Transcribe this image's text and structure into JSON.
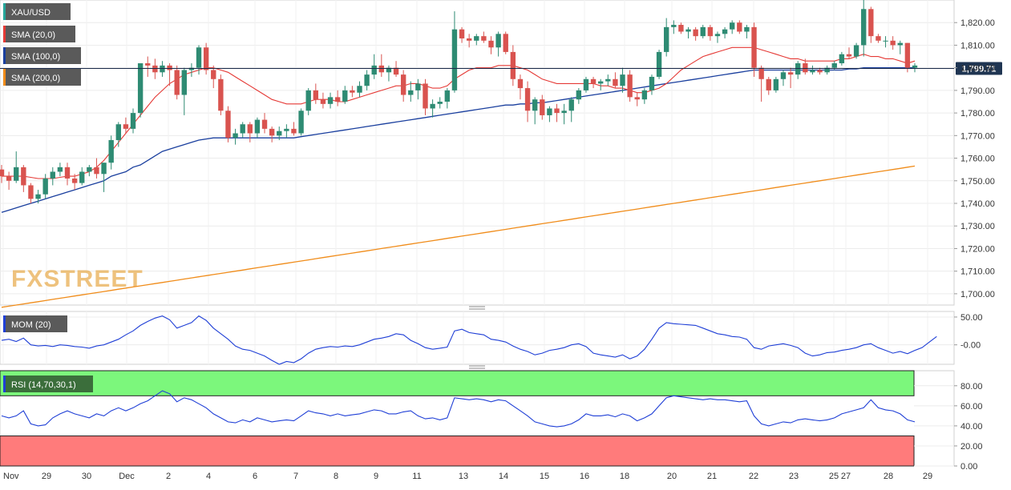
{
  "watermark": "FXSTREET",
  "chart_data": {
    "type": "candlestick",
    "symbol": "XAU/USD",
    "last_price": 1799.71,
    "last_price_label": "1,799.71",
    "price_axis": {
      "ylim": [
        1695,
        1830
      ],
      "ticks": [
        1700,
        1710,
        1720,
        1730,
        1740,
        1750,
        1760,
        1770,
        1780,
        1790,
        1800,
        1810,
        1820
      ],
      "tick_labels": [
        "1,700.00",
        "1,710.00",
        "1,720.00",
        "1,730.00",
        "1,740.00",
        "1,750.00",
        "1,760.00",
        "1,770.00",
        "1,780.00",
        "1,790.00",
        "1,800.00",
        "1,810.00",
        "1,820.00"
      ]
    },
    "x_axis": {
      "labels": [
        "Nov",
        "29",
        "30",
        "Dec",
        "2",
        "4",
        "6",
        "7",
        "8",
        "9",
        "11",
        "13",
        "14",
        "15",
        "16",
        "18",
        "20",
        "21",
        "22",
        "23",
        "25",
        "27",
        "28",
        "29"
      ]
    },
    "legend": [
      {
        "label": "XAU/USD",
        "color": "#26a69a"
      },
      {
        "label": "SMA (20,0)",
        "color": "#e53935"
      },
      {
        "label": "SMA (100,0)",
        "color": "#1a3f9e"
      },
      {
        "label": "SMA (200,0)",
        "color": "#f08c1a"
      }
    ],
    "candles": [
      [
        1755,
        1757,
        1749,
        1752
      ],
      [
        1752,
        1754,
        1746,
        1750
      ],
      [
        1750,
        1763,
        1749,
        1756
      ],
      [
        1756,
        1757,
        1745,
        1748
      ],
      [
        1748,
        1749,
        1740,
        1742
      ],
      [
        1742,
        1746,
        1740,
        1744
      ],
      [
        1744,
        1753,
        1742,
        1751
      ],
      [
        1751,
        1756,
        1748,
        1754
      ],
      [
        1754,
        1758,
        1752,
        1756
      ],
      [
        1756,
        1758,
        1748,
        1751
      ],
      [
        1751,
        1753,
        1746,
        1749
      ],
      [
        1749,
        1756,
        1748,
        1754
      ],
      [
        1754,
        1757,
        1752,
        1756
      ],
      [
        1756,
        1760,
        1751,
        1753
      ],
      [
        1753,
        1758,
        1745,
        1758
      ],
      [
        1758,
        1770,
        1755,
        1768
      ],
      [
        1768,
        1776,
        1765,
        1775
      ],
      [
        1775,
        1778,
        1771,
        1773
      ],
      [
        1773,
        1782,
        1771,
        1780
      ],
      [
        1780,
        1802,
        1778,
        1802
      ],
      [
        1802,
        1805,
        1796,
        1801
      ],
      [
        1801,
        1804,
        1795,
        1798
      ],
      [
        1798,
        1803,
        1796,
        1801
      ],
      [
        1801,
        1802,
        1792,
        1799
      ],
      [
        1799,
        1801,
        1786,
        1788
      ],
      [
        1788,
        1800,
        1779,
        1799
      ],
      [
        1799,
        1802,
        1796,
        1800
      ],
      [
        1800,
        1810,
        1797,
        1809
      ],
      [
        1809,
        1811,
        1797,
        1799
      ],
      [
        1799,
        1801,
        1791,
        1795
      ],
      [
        1795,
        1797,
        1779,
        1781
      ],
      [
        1781,
        1783,
        1767,
        1769
      ],
      [
        1769,
        1773,
        1766,
        1771
      ],
      [
        1771,
        1776,
        1769,
        1775
      ],
      [
        1775,
        1776,
        1767,
        1771
      ],
      [
        1771,
        1778,
        1769,
        1777
      ],
      [
        1777,
        1780,
        1771,
        1773
      ],
      [
        1773,
        1774,
        1767,
        1770
      ],
      [
        1770,
        1774,
        1768,
        1772
      ],
      [
        1772,
        1775,
        1769,
        1773
      ],
      [
        1773,
        1776,
        1770,
        1771
      ],
      [
        1771,
        1782,
        1770,
        1781
      ],
      [
        1781,
        1791,
        1779,
        1790
      ],
      [
        1790,
        1793,
        1784,
        1786
      ],
      [
        1786,
        1789,
        1782,
        1784
      ],
      [
        1784,
        1789,
        1782,
        1787
      ],
      [
        1787,
        1790,
        1783,
        1785
      ],
      [
        1785,
        1792,
        1784,
        1790
      ],
      [
        1790,
        1792,
        1787,
        1789
      ],
      [
        1789,
        1794,
        1787,
        1792
      ],
      [
        1792,
        1799,
        1790,
        1797
      ],
      [
        1797,
        1806,
        1795,
        1801
      ],
      [
        1801,
        1806,
        1796,
        1798
      ],
      [
        1798,
        1801,
        1794,
        1800
      ],
      [
        1800,
        1803,
        1796,
        1797
      ],
      [
        1797,
        1799,
        1785,
        1788
      ],
      [
        1788,
        1794,
        1785,
        1790
      ],
      [
        1790,
        1795,
        1786,
        1793
      ],
      [
        1793,
        1795,
        1779,
        1782
      ],
      [
        1782,
        1786,
        1778,
        1784
      ],
      [
        1784,
        1787,
        1782,
        1785
      ],
      [
        1785,
        1791,
        1782,
        1790
      ],
      [
        1790,
        1825,
        1789,
        1817
      ],
      [
        1817,
        1818,
        1811,
        1813
      ],
      [
        1813,
        1815,
        1809,
        1812
      ],
      [
        1812,
        1815,
        1810,
        1814
      ],
      [
        1814,
        1816,
        1811,
        1812
      ],
      [
        1812,
        1814,
        1806,
        1809
      ],
      [
        1809,
        1816,
        1805,
        1815
      ],
      [
        1815,
        1816,
        1806,
        1807
      ],
      [
        1807,
        1810,
        1792,
        1795
      ],
      [
        1795,
        1797,
        1786,
        1791
      ],
      [
        1791,
        1794,
        1776,
        1781
      ],
      [
        1781,
        1787,
        1775,
        1786
      ],
      [
        1786,
        1788,
        1777,
        1779
      ],
      [
        1779,
        1783,
        1776,
        1782
      ],
      [
        1782,
        1784,
        1776,
        1780
      ],
      [
        1780,
        1784,
        1775,
        1781
      ],
      [
        1781,
        1787,
        1776,
        1786
      ],
      [
        1786,
        1791,
        1784,
        1790
      ],
      [
        1790,
        1796,
        1789,
        1795
      ],
      [
        1795,
        1796,
        1791,
        1793
      ],
      [
        1793,
        1795,
        1790,
        1794
      ],
      [
        1794,
        1797,
        1792,
        1795
      ],
      [
        1795,
        1798,
        1791,
        1792
      ],
      [
        1792,
        1800,
        1789,
        1797
      ],
      [
        1797,
        1799,
        1785,
        1787
      ],
      [
        1787,
        1789,
        1783,
        1786
      ],
      [
        1786,
        1791,
        1784,
        1790
      ],
      [
        1790,
        1797,
        1788,
        1796
      ],
      [
        1796,
        1808,
        1795,
        1807
      ],
      [
        1807,
        1822,
        1805,
        1818
      ],
      [
        1818,
        1821,
        1815,
        1819
      ],
      [
        1819,
        1820,
        1815,
        1816
      ],
      [
        1816,
        1818,
        1813,
        1817
      ],
      [
        1817,
        1818,
        1812,
        1814
      ],
      [
        1814,
        1819,
        1813,
        1818
      ],
      [
        1818,
        1819,
        1812,
        1814
      ],
      [
        1814,
        1816,
        1811,
        1815
      ],
      [
        1815,
        1818,
        1813,
        1817
      ],
      [
        1817,
        1821,
        1815,
        1820
      ],
      [
        1820,
        1821,
        1815,
        1816
      ],
      [
        1816,
        1819,
        1813,
        1818
      ],
      [
        1818,
        1820,
        1796,
        1800
      ],
      [
        1800,
        1801,
        1785,
        1795
      ],
      [
        1795,
        1796,
        1788,
        1790
      ],
      [
        1790,
        1796,
        1789,
        1795
      ],
      [
        1795,
        1799,
        1792,
        1798
      ],
      [
        1798,
        1800,
        1791,
        1797
      ],
      [
        1797,
        1803,
        1795,
        1802
      ],
      [
        1802,
        1804,
        1797,
        1798
      ],
      [
        1798,
        1801,
        1797,
        1799
      ],
      [
        1799,
        1800,
        1797,
        1798
      ],
      [
        1798,
        1801,
        1797,
        1800
      ],
      [
        1800,
        1803,
        1799,
        1802
      ],
      [
        1802,
        1807,
        1801,
        1806
      ],
      [
        1806,
        1809,
        1804,
        1805
      ],
      [
        1805,
        1811,
        1804,
        1810
      ],
      [
        1810,
        1831,
        1805,
        1826
      ],
      [
        1826,
        1827,
        1811,
        1814
      ],
      [
        1814,
        1815,
        1811,
        1812
      ],
      [
        1812,
        1814,
        1809,
        1812
      ],
      [
        1812,
        1814,
        1808,
        1810
      ],
      [
        1810,
        1812,
        1806,
        1811
      ],
      [
        1811,
        1811,
        1798,
        1800
      ],
      [
        1800,
        1802,
        1798,
        1801
      ]
    ],
    "sma20": [
      1752,
      1752,
      1752,
      1752,
      1751.5,
      1751,
      1751,
      1751,
      1751.5,
      1752,
      1752,
      1753,
      1754,
      1756,
      1759,
      1763,
      1767,
      1771,
      1775,
      1779,
      1783,
      1787,
      1790,
      1793,
      1795,
      1797,
      1798,
      1799,
      1800,
      1800,
      1799,
      1798,
      1796,
      1794,
      1792,
      1790,
      1788,
      1786,
      1785,
      1784,
      1784,
      1784,
      1785,
      1786,
      1786,
      1786,
      1785,
      1785,
      1786,
      1787,
      1788,
      1789,
      1790,
      1791,
      1792,
      1792,
      1793,
      1793,
      1792,
      1791,
      1791,
      1792,
      1795,
      1797,
      1799,
      1800,
      1800,
      1800,
      1801,
      1801,
      1801,
      1800,
      1799,
      1797,
      1795,
      1794,
      1793,
      1793,
      1793,
      1793,
      1793,
      1793,
      1792,
      1792,
      1791,
      1791,
      1790,
      1789,
      1789,
      1790,
      1791,
      1793,
      1796,
      1799,
      1801,
      1803,
      1805,
      1806,
      1807,
      1808,
      1809,
      1809,
      1809,
      1809,
      1808,
      1807,
      1806,
      1805,
      1804,
      1804,
      1803,
      1803,
      1803,
      1803,
      1803,
      1804,
      1804,
      1805,
      1806,
      1805,
      1805,
      1804,
      1804,
      1803,
      1802,
      1803
    ],
    "sma100": [
      1736,
      1737,
      1738,
      1739,
      1740,
      1741,
      1742,
      1743,
      1744,
      1745,
      1746,
      1747,
      1748,
      1749,
      1750,
      1752,
      1753,
      1754,
      1756,
      1757,
      1759,
      1761,
      1763,
      1764,
      1765,
      1766,
      1767,
      1768,
      1768.5,
      1769,
      1769,
      1769,
      1769,
      1769,
      1769,
      1769,
      1769,
      1769,
      1769,
      1769,
      1769,
      1769.5,
      1770,
      1770.5,
      1771,
      1771.5,
      1772,
      1772.5,
      1773,
      1773.5,
      1774,
      1774.5,
      1775,
      1775.5,
      1776,
      1776.5,
      1777,
      1777.5,
      1778,
      1778.5,
      1779,
      1779.5,
      1780,
      1780.5,
      1781,
      1781.5,
      1782,
      1782.5,
      1783,
      1783.5,
      1783.5,
      1784,
      1784,
      1784.5,
      1784.5,
      1785,
      1785.5,
      1786,
      1786.5,
      1787,
      1787.5,
      1788,
      1788.5,
      1789,
      1789.5,
      1790,
      1790.5,
      1791,
      1791.5,
      1792,
      1792.5,
      1793,
      1793.5,
      1794,
      1794.5,
      1795,
      1795.5,
      1796,
      1796.5,
      1797,
      1797.5,
      1798,
      1798.5,
      1799,
      1799,
      1799,
      1799,
      1799,
      1799,
      1799,
      1799,
      1799,
      1799,
      1799,
      1799,
      1799,
      1799.5,
      1799.5,
      1800,
      1800,
      1800,
      1800,
      1800,
      1800,
      1800,
      1800
    ],
    "sma200": [
      1694,
      1694.5,
      1695,
      1695.5,
      1696,
      1696.5,
      1697,
      1697.5,
      1698,
      1698.5,
      1699,
      1699.5,
      1700,
      1700.5,
      1701,
      1701.5,
      1702,
      1702.5,
      1703,
      1703.5,
      1704,
      1704.5,
      1705,
      1705.5,
      1706,
      1706.5,
      1707,
      1707.5,
      1708,
      1708.5,
      1709,
      1709.5,
      1710,
      1710.5,
      1711,
      1711.5,
      1712,
      1712.5,
      1713,
      1713.5,
      1714,
      1714.5,
      1715,
      1715.5,
      1716,
      1716.5,
      1717,
      1717.5,
      1718,
      1718.5,
      1719,
      1719.5,
      1720,
      1720.5,
      1721,
      1721.5,
      1722,
      1722.5,
      1723,
      1723.5,
      1724,
      1724.5,
      1725,
      1725.5,
      1726,
      1726.5,
      1727,
      1727.5,
      1728,
      1728.5,
      1729,
      1729.5,
      1730,
      1730.5,
      1731,
      1731.5,
      1732,
      1732.5,
      1733,
      1733.5,
      1734,
      1734.5,
      1735,
      1735.5,
      1736,
      1736.5,
      1737,
      1737.5,
      1738,
      1738.5,
      1739,
      1739.5,
      1740,
      1740.5,
      1741,
      1741.5,
      1742,
      1742.5,
      1743,
      1743.5,
      1744,
      1744.5,
      1745,
      1745.5,
      1746,
      1746.5,
      1747,
      1747.5,
      1748,
      1748.5,
      1749,
      1749.5,
      1750,
      1750.5,
      1751,
      1751.5,
      1752,
      1752.5,
      1753,
      1753.5,
      1754,
      1754.5,
      1755,
      1755.5,
      1756,
      1756.5
    ],
    "mom": {
      "label": "MOM (20)",
      "color": "#1f3fd6",
      "ylim": [
        -35,
        60
      ],
      "tick_labels": [
        "50.00",
        "-0.00"
      ],
      "ticks": [
        50,
        0
      ],
      "values": [
        8,
        10,
        6,
        12,
        0,
        -2,
        -1,
        -3,
        0,
        -1,
        -3,
        -4,
        -6,
        -2,
        0,
        5,
        10,
        18,
        25,
        35,
        42,
        48,
        52,
        45,
        30,
        35,
        40,
        52,
        44,
        30,
        20,
        10,
        -2,
        -8,
        -10,
        -15,
        -20,
        -28,
        -35,
        -30,
        -32,
        -25,
        -15,
        -8,
        -5,
        -3,
        -4,
        -2,
        -3,
        0,
        5,
        10,
        12,
        15,
        20,
        18,
        8,
        2,
        -5,
        -8,
        -6,
        -4,
        25,
        28,
        22,
        20,
        18,
        10,
        8,
        5,
        -2,
        -8,
        -12,
        -18,
        -15,
        -10,
        -8,
        -5,
        0,
        2,
        -3,
        -15,
        -18,
        -20,
        -22,
        -18,
        -25,
        -20,
        -8,
        10,
        30,
        40,
        38,
        37,
        36,
        35,
        30,
        25,
        20,
        18,
        15,
        14,
        10,
        -5,
        -8,
        -2,
        0,
        2,
        -1,
        -5,
        -15,
        -20,
        -18,
        -14,
        -13,
        -10,
        -8,
        -5,
        0,
        2,
        -5,
        -10,
        -15,
        -12,
        -16,
        -10,
        -5,
        5,
        15
      ]
    },
    "rsi": {
      "label": "RSI (14,70,30,1)",
      "ylim": [
        0,
        95
      ],
      "tick_labels": [
        "80.00",
        "60.00",
        "40.00",
        "20.00",
        "0.00"
      ],
      "ticks": [
        80,
        60,
        40,
        20,
        0
      ],
      "overbought": 70,
      "oversold": 30,
      "values": [
        50,
        48,
        50,
        55,
        42,
        40,
        41,
        48,
        52,
        55,
        52,
        50,
        48,
        52,
        50,
        55,
        58,
        55,
        58,
        62,
        65,
        70,
        75,
        72,
        64,
        68,
        66,
        62,
        58,
        52,
        48,
        44,
        43,
        46,
        44,
        48,
        46,
        44,
        45,
        46,
        45,
        50,
        55,
        53,
        52,
        50,
        52,
        50,
        51,
        52,
        54,
        56,
        55,
        52,
        52,
        54,
        55,
        50,
        47,
        48,
        46,
        48,
        68,
        67,
        66,
        67,
        66,
        64,
        66,
        65,
        60,
        55,
        50,
        44,
        42,
        40,
        39,
        40,
        42,
        46,
        52,
        50,
        50,
        51,
        49,
        52,
        50,
        45,
        48,
        52,
        60,
        68,
        70,
        69,
        68,
        67,
        66,
        67,
        66,
        66,
        65,
        64,
        65,
        50,
        42,
        40,
        42,
        44,
        43,
        46,
        47,
        46,
        45,
        46,
        48,
        52,
        54,
        56,
        58,
        66,
        58,
        56,
        55,
        52,
        46,
        44
      ]
    }
  }
}
